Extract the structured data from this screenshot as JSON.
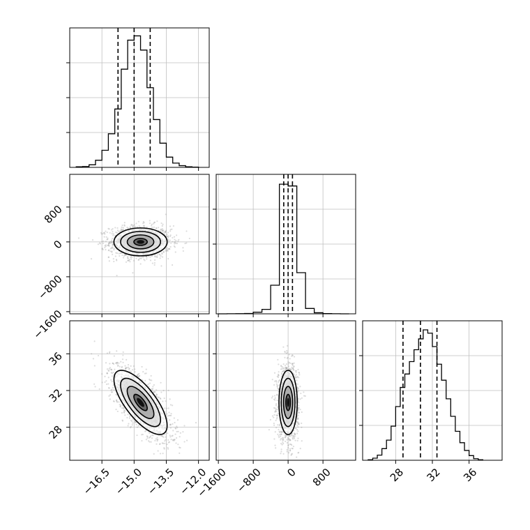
{
  "chart_data": {
    "type": "corner",
    "parameters": 3,
    "grid": true,
    "colors": {
      "hist": "#000000",
      "quantile": "#000000",
      "grid": "#bfbfbf",
      "scatter": "#9a9a9a",
      "density": "#000000"
    },
    "axes": [
      {
        "index": 0,
        "range": [
          -18.0,
          -11.5
        ],
        "ticks": [
          -16.5,
          -15.0,
          -13.5,
          -12.0
        ],
        "tick_labels": [
          "−16.5",
          "−15.0",
          "−13.5",
          "−12.0"
        ]
      },
      {
        "index": 1,
        "range": [
          -1650,
          1550
        ],
        "ticks": [
          -1600,
          -800,
          0,
          800
        ],
        "tick_labels": [
          "−1600",
          "−800",
          "0",
          "800"
        ]
      },
      {
        "index": 2,
        "range": [
          24.4,
          39.6
        ],
        "ticks": [
          28,
          32,
          36
        ],
        "tick_labels": [
          "28",
          "32",
          "36"
        ]
      }
    ],
    "histograms": [
      {
        "param": 0,
        "bin_edges": [
          -17.7,
          -17.4,
          -17.1,
          -16.8,
          -16.5,
          -16.2,
          -15.9,
          -15.6,
          -15.3,
          -15.0,
          -14.7,
          -14.4,
          -14.1,
          -13.8,
          -13.5,
          -13.2,
          -12.9,
          -12.6,
          -12.3,
          -12.0
        ],
        "counts": [
          2,
          3,
          9,
          25,
          60,
          118,
          205,
          345,
          447,
          462,
          412,
          280,
          168,
          85,
          36,
          15,
          6,
          2,
          1
        ],
        "ymax": 490,
        "quantiles": [
          -15.75,
          -15.0,
          -14.25
        ]
      },
      {
        "param": 1,
        "bin_edges": [
          -1600,
          -1400,
          -1200,
          -1000,
          -800,
          -600,
          -400,
          -200,
          0,
          200,
          400,
          600,
          800,
          1000,
          1200,
          1400
        ],
        "counts": [
          0,
          1,
          2,
          4,
          18,
          50,
          320,
          1450,
          1430,
          460,
          60,
          12,
          3,
          1,
          0
        ],
        "ymax": 1560,
        "quantiles": [
          -100,
          0,
          100
        ]
      },
      {
        "param": 2,
        "bin_edges": [
          25.0,
          25.5,
          26.0,
          26.5,
          27.0,
          27.5,
          28.0,
          28.5,
          29.0,
          29.5,
          30.0,
          30.5,
          31.0,
          31.5,
          32.0,
          32.5,
          33.0,
          33.5,
          34.0,
          34.5,
          35.0,
          35.5,
          36.0,
          36.5,
          37.0,
          37.5
        ],
        "counts": [
          2,
          8,
          20,
          45,
          78,
          132,
          208,
          282,
          334,
          382,
          428,
          470,
          505,
          492,
          440,
          372,
          310,
          238,
          170,
          112,
          68,
          38,
          18,
          6,
          2
        ],
        "ymax": 540,
        "quantiles": [
          28.8,
          30.7,
          32.5
        ]
      }
    ],
    "joint": [
      {
        "x": 0,
        "y": 1,
        "center": [
          -14.7,
          0
        ],
        "sd": [
          0.62,
          160
        ],
        "rho": 0.0
      },
      {
        "x": 0,
        "y": 2,
        "center": [
          -14.7,
          30.7
        ],
        "sd": [
          0.62,
          1.75
        ],
        "rho": -0.72
      },
      {
        "x": 1,
        "y": 2,
        "center": [
          0,
          30.7
        ],
        "sd": [
          105,
          1.75
        ],
        "rho": 0.0
      }
    ]
  }
}
